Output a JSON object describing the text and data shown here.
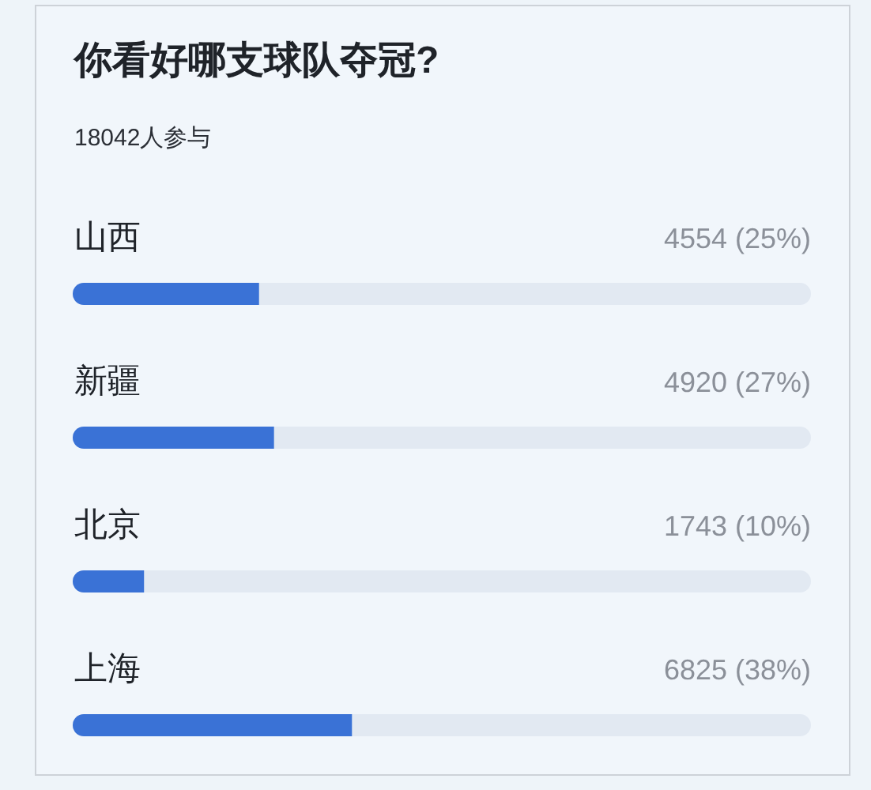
{
  "chart_data": {
    "type": "bar",
    "orientation": "horizontal",
    "title": "你看好哪支球队夺冠?",
    "subtitle": "18042人参与",
    "categories": [
      "山西",
      "新疆",
      "北京",
      "上海"
    ],
    "values": [
      4554,
      4920,
      1743,
      6825
    ],
    "value_labels": [
      "4554 (25%)",
      "4920 (27%)",
      "1743 (10%)",
      "6825 (38%)"
    ],
    "color": "#3a72d6",
    "xlim": [
      0,
      18042
    ],
    "tick_labels": "y"
  }
}
